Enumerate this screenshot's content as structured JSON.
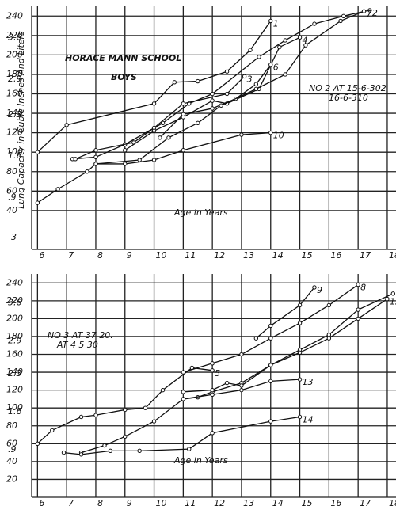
{
  "chart_data": [
    {
      "type": "line",
      "title": "HORACE MANN SCHOOL",
      "subtitle": "BOYS",
      "y_label": "Lung Capacity in Cubic Inches And Liters",
      "x_label": "Age in Years",
      "annotations": [
        "NO 2 AT 15-6-302",
        "16-6-310",
        "3"
      ],
      "xlim": [
        5.8,
        18.3
      ],
      "xticks": [
        6,
        7,
        8,
        9,
        10,
        11,
        12,
        13,
        14,
        15,
        16,
        17,
        18
      ],
      "ylim": [
        0,
        250
      ],
      "yticks": [
        40,
        60,
        80,
        100,
        120,
        140,
        160,
        180,
        200,
        220,
        240
      ],
      "y2lim": [
        0,
        4.1
      ],
      "y2ticks": [
        {
          "value": 0.9,
          "label": ".9"
        },
        1.6,
        2.3,
        2.9,
        3.6
      ],
      "grid": true,
      "series": [
        {
          "name": "1",
          "color": "#111",
          "x": [
            6,
            7,
            10,
            10.7,
            11.5,
            12.5,
            13.3,
            14
          ],
          "values": [
            100,
            128,
            150,
            172,
            173,
            183,
            205,
            235
          ]
        },
        {
          "name": "2",
          "color": "#111",
          "x": [
            7.2,
            8,
            9,
            10.3,
            11.2,
            12,
            13.6,
            14.5,
            15.5,
            16.5,
            17.4
          ],
          "values": [
            93,
            95,
            108,
            130,
            150,
            160,
            198,
            215,
            232,
            240,
            246
          ]
        },
        {
          "name": "3",
          "color": "#111",
          "x": [
            7.3,
            8,
            9.3,
            10,
            11,
            12.5,
            13.1
          ],
          "values": [
            93,
            102,
            110,
            125,
            150,
            160,
            178
          ]
        },
        {
          "name": "4",
          "color": "#111",
          "x": [
            9,
            10,
            11,
            12,
            12.5,
            13.6,
            14.3,
            15
          ],
          "values": [
            102,
            122,
            136,
            153,
            150,
            165,
            208,
            218
          ]
        },
        {
          "name": "6",
          "color": "#111",
          "x": [
            10.2,
            11,
            12,
            12.8,
            13.5,
            14
          ],
          "values": [
            115,
            139,
            145,
            155,
            170,
            190
          ]
        },
        {
          "name": "7",
          "color": "#111",
          "x": [
            8,
            9.5,
            10.5,
            11.5,
            12.3,
            13.5,
            14.5,
            15.2,
            16.4,
            17.2
          ],
          "values": [
            88,
            92,
            115,
            130,
            148,
            165,
            180,
            210,
            235,
            245
          ]
        },
        {
          "name": "10",
          "color": "#111",
          "x": [
            6,
            6.7,
            7.7,
            8,
            9,
            10,
            11,
            13,
            14
          ],
          "values": [
            48,
            62,
            80,
            88,
            88,
            92,
            102,
            118,
            120
          ]
        }
      ]
    },
    {
      "type": "line",
      "x_label": "Age in Years",
      "annotations": [
        "NO 3 AT 37 20.",
        "AT 4 5 30"
      ],
      "xlim": [
        5.8,
        18.3
      ],
      "xticks": [
        6,
        7,
        8,
        9,
        10,
        11,
        12,
        13,
        14,
        15,
        16,
        17,
        18
      ],
      "ylim": [
        0,
        250
      ],
      "yticks": [
        20,
        40,
        60,
        80,
        100,
        120,
        140,
        160,
        180,
        200,
        220,
        240
      ],
      "y2lim": [
        0,
        4.1
      ],
      "y2ticks": [
        {
          "value": 0.9,
          "label": ".9"
        },
        1.6,
        2.3,
        2.9,
        3.6
      ],
      "grid": true,
      "series": [
        {
          "name": "5",
          "color": "#111",
          "x": [
            6,
            6.5,
            7.5,
            8,
            9,
            9.7,
            10.3,
            11.3,
            12
          ],
          "values": [
            60,
            75,
            90,
            92,
            98,
            100,
            120,
            145,
            142
          ]
        },
        {
          "name": "8",
          "color": "#111",
          "x": [
            11,
            12,
            13,
            14,
            15,
            16,
            17
          ],
          "values": [
            140,
            150,
            160,
            178,
            195,
            215,
            238
          ]
        },
        {
          "name": "9",
          "color": "#111",
          "x": [
            13.5,
            14,
            15,
            15.5
          ],
          "values": [
            178,
            192,
            215,
            235
          ]
        },
        {
          "name": "11",
          "color": "#111",
          "x": [
            11,
            11.5,
            12,
            13,
            14,
            15,
            16,
            17,
            18.2
          ],
          "values": [
            110,
            112,
            118,
            128,
            148,
            165,
            182,
            210,
            228
          ]
        },
        {
          "name": "12",
          "color": "#111",
          "x": [
            11,
            12,
            12.5,
            13,
            14,
            15,
            16,
            17,
            18
          ],
          "values": [
            118,
            120,
            128,
            125,
            148,
            162,
            178,
            200,
            222
          ]
        },
        {
          "name": "13",
          "color": "#111",
          "x": [
            7.5,
            8.3,
            9,
            10,
            11,
            12,
            13,
            14,
            15
          ],
          "values": [
            50,
            58,
            68,
            85,
            110,
            115,
            120,
            130,
            132
          ]
        },
        {
          "name": "14",
          "color": "#111",
          "x": [
            6.9,
            7.5,
            8.5,
            9.5,
            11.2,
            12,
            14,
            15
          ],
          "values": [
            50,
            48,
            52,
            52,
            54,
            72,
            85,
            90
          ]
        }
      ]
    }
  ]
}
